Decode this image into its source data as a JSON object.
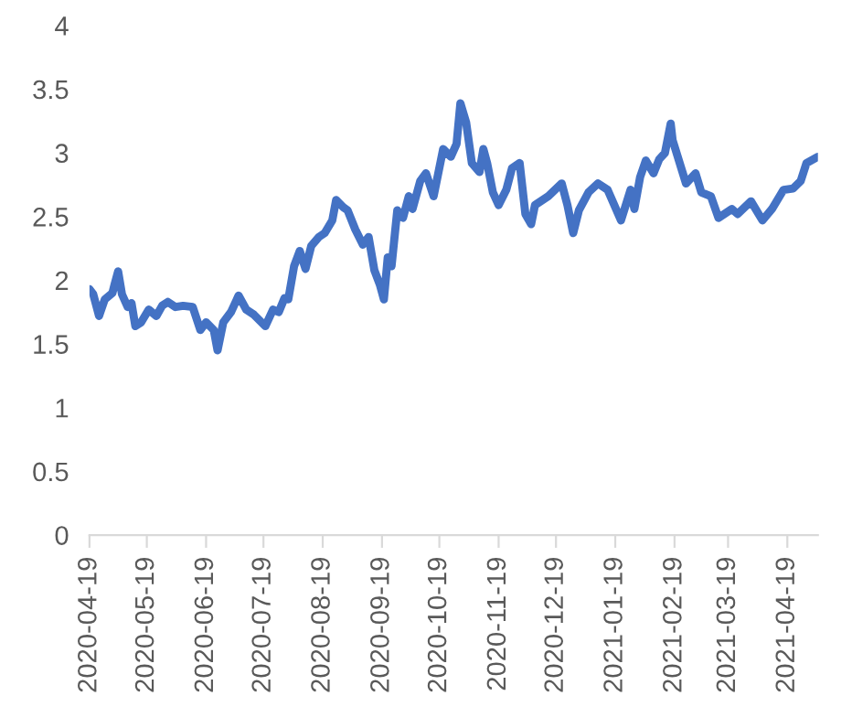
{
  "chart_data": {
    "type": "line",
    "x": [
      "2020-04-19",
      "2020-04-21",
      "2020-04-24",
      "2020-04-27",
      "2020-05-01",
      "2020-05-02",
      "2020-05-04",
      "2020-05-06",
      "2020-05-09",
      "2020-05-11",
      "2020-05-13",
      "2020-05-16",
      "2020-05-20",
      "2020-05-24",
      "2020-05-27",
      "2020-05-30",
      "2020-06-03",
      "2020-06-07",
      "2020-06-12",
      "2020-06-16",
      "2020-06-19",
      "2020-06-23",
      "2020-06-25",
      "2020-06-28",
      "2020-07-02",
      "2020-07-06",
      "2020-07-10",
      "2020-07-14",
      "2020-07-20",
      "2020-07-24",
      "2020-07-27",
      "2020-07-30",
      "2020-08-01",
      "2020-08-04",
      "2020-08-07",
      "2020-08-10",
      "2020-08-13",
      "2020-08-17",
      "2020-08-20",
      "2020-08-24",
      "2020-08-26",
      "2020-08-30",
      "2020-09-01",
      "2020-09-05",
      "2020-09-09",
      "2020-09-12",
      "2020-09-15",
      "2020-09-18",
      "2020-09-20",
      "2020-09-22",
      "2020-09-24",
      "2020-09-27",
      "2020-09-30",
      "2020-10-03",
      "2020-10-05",
      "2020-10-09",
      "2020-10-12",
      "2020-10-16",
      "2020-10-21",
      "2020-10-25",
      "2020-10-28",
      "2020-10-30",
      "2020-11-02",
      "2020-11-05",
      "2020-11-09",
      "2020-11-11",
      "2020-11-13",
      "2020-11-16",
      "2020-11-19",
      "2020-11-23",
      "2020-11-26",
      "2020-11-30",
      "2020-12-03",
      "2020-12-06",
      "2020-12-08",
      "2020-12-15",
      "2020-12-22",
      "2020-12-25",
      "2020-12-28",
      "2020-12-31",
      "2021-01-05",
      "2021-01-10",
      "2021-01-15",
      "2021-01-22",
      "2021-01-27",
      "2021-01-29",
      "2021-02-01",
      "2021-02-04",
      "2021-02-08",
      "2021-02-11",
      "2021-02-14",
      "2021-02-17",
      "2021-02-18",
      "2021-02-25",
      "2021-03-02",
      "2021-03-05",
      "2021-03-10",
      "2021-03-14",
      "2021-03-21",
      "2021-03-24",
      "2021-03-31",
      "2021-04-06",
      "2021-04-11",
      "2021-04-17",
      "2021-04-22",
      "2021-04-26",
      "2021-04-29",
      "2021-05-05"
    ],
    "series": [
      {
        "color": "#4472c4",
        "values": [
          1.93,
          1.89,
          1.72,
          1.85,
          1.9,
          1.96,
          2.07,
          1.89,
          1.79,
          1.82,
          1.64,
          1.67,
          1.77,
          1.72,
          1.8,
          1.83,
          1.79,
          1.8,
          1.79,
          1.61,
          1.67,
          1.61,
          1.45,
          1.67,
          1.75,
          1.88,
          1.77,
          1.73,
          1.64,
          1.77,
          1.75,
          1.86,
          1.85,
          2.11,
          2.23,
          2.09,
          2.27,
          2.34,
          2.37,
          2.47,
          2.63,
          2.57,
          2.55,
          2.4,
          2.28,
          2.34,
          2.08,
          1.96,
          1.85,
          2.18,
          2.11,
          2.55,
          2.49,
          2.66,
          2.56,
          2.78,
          2.84,
          2.66,
          3.03,
          2.97,
          3.07,
          3.39,
          3.24,
          2.92,
          2.85,
          3.03,
          2.92,
          2.69,
          2.59,
          2.71,
          2.88,
          2.92,
          2.52,
          2.44,
          2.59,
          2.66,
          2.76,
          2.59,
          2.37,
          2.55,
          2.69,
          2.76,
          2.71,
          2.47,
          2.71,
          2.56,
          2.81,
          2.94,
          2.84,
          2.95,
          3.0,
          3.23,
          3.1,
          2.76,
          2.84,
          2.69,
          2.66,
          2.49,
          2.56,
          2.52,
          2.62,
          2.47,
          2.56,
          2.71,
          2.72,
          2.78,
          2.92,
          2.97
        ]
      }
    ],
    "xlim": [
      "2020-04-19",
      "2021-05-05"
    ],
    "xticks": [
      {
        "value": "2020-04-19",
        "label": "2020-04-19"
      },
      {
        "value": "2020-05-19",
        "label": "2020-05-19"
      },
      {
        "value": "2020-06-19",
        "label": "2020-06-19"
      },
      {
        "value": "2020-07-19",
        "label": "2020-07-19"
      },
      {
        "value": "2020-08-19",
        "label": "2020-08-19"
      },
      {
        "value": "2020-09-19",
        "label": "2020-09-19"
      },
      {
        "value": "2020-10-19",
        "label": "2020-10-19"
      },
      {
        "value": "2020-11-19",
        "label": "2020-11-19"
      },
      {
        "value": "2020-12-19",
        "label": "2020-12-19"
      },
      {
        "value": "2021-01-19",
        "label": "2021-01-19"
      },
      {
        "value": "2021-02-19",
        "label": "2021-02-19"
      },
      {
        "value": "2021-03-19",
        "label": "2021-03-19"
      },
      {
        "value": "2021-04-19",
        "label": "2021-04-19"
      }
    ],
    "ylim": [
      0,
      4
    ],
    "yticks": [
      0,
      0.5,
      1,
      1.5,
      2,
      2.5,
      3,
      3.5,
      4
    ],
    "grid": false,
    "marker": "none",
    "line_style": "solid"
  }
}
